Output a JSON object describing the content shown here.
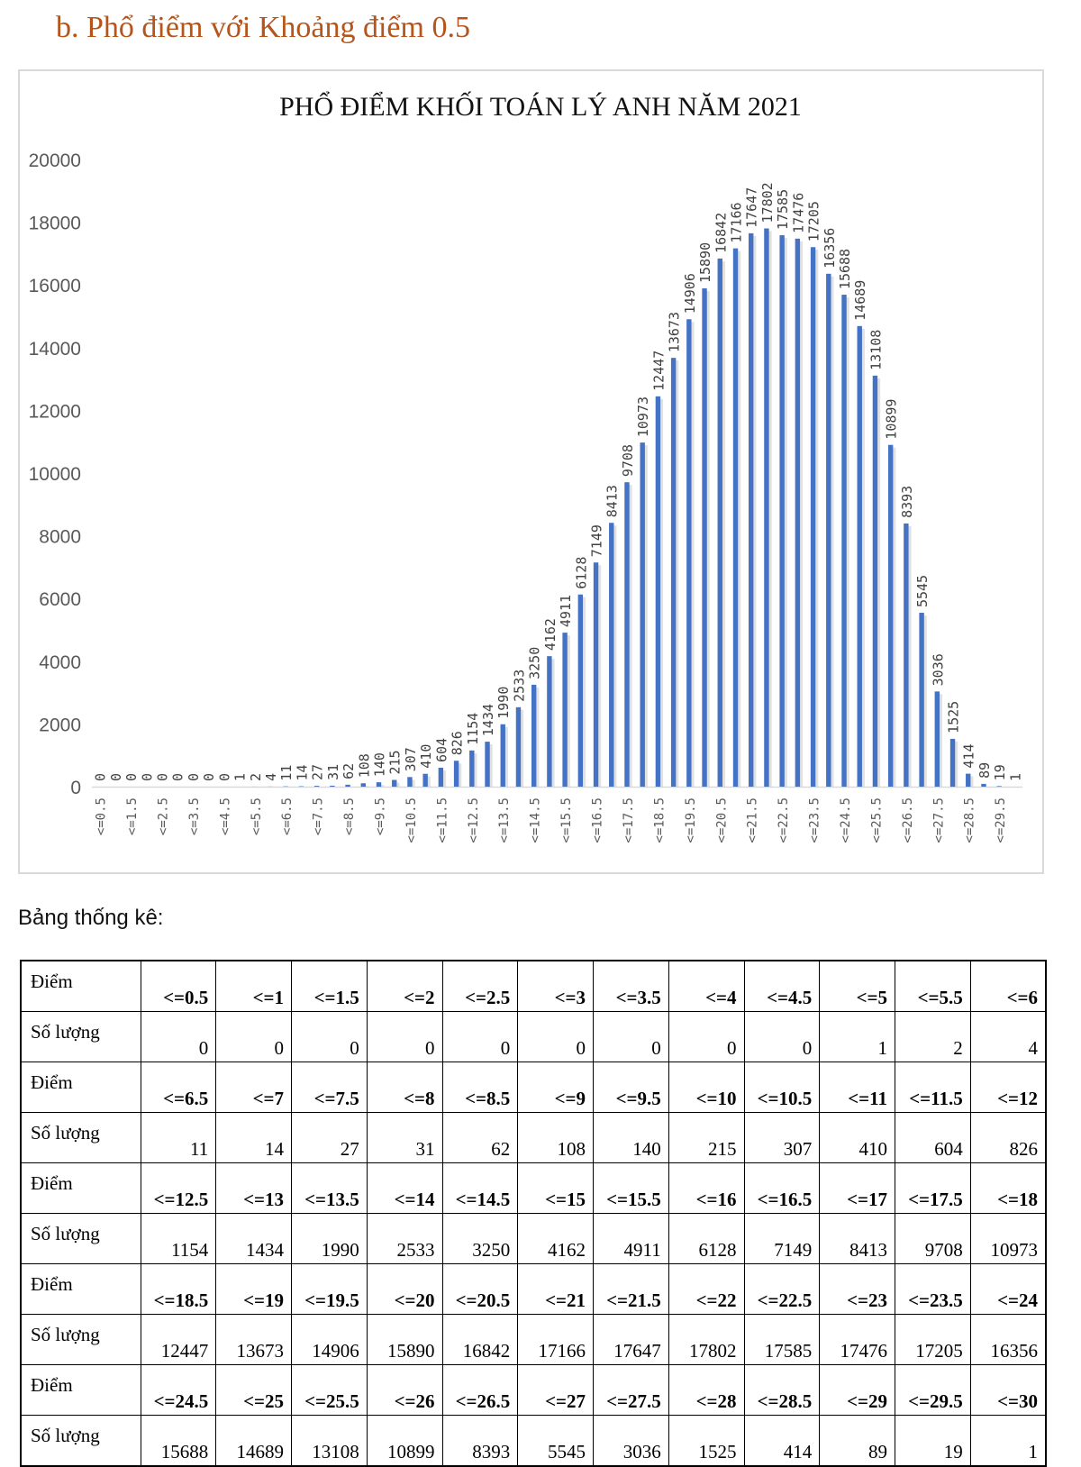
{
  "heading": "b.  Phổ điểm với Khoảng điểm 0.5",
  "subheading": "Bảng thống kê:",
  "table": {
    "score_label": "Điểm",
    "count_label": "Số lượng",
    "rows": [
      {
        "scores": [
          "<=0.5",
          "<=1",
          "<=1.5",
          "<=2",
          "<=2.5",
          "<=3",
          "<=3.5",
          "<=4",
          "<=4.5",
          "<=5",
          "<=5.5",
          "<=6"
        ],
        "counts": [
          "0",
          "0",
          "0",
          "0",
          "0",
          "0",
          "0",
          "0",
          "0",
          "1",
          "2",
          "4"
        ]
      },
      {
        "scores": [
          "<=6.5",
          "<=7",
          "<=7.5",
          "<=8",
          "<=8.5",
          "<=9",
          "<=9.5",
          "<=10",
          "<=10.5",
          "<=11",
          "<=11.5",
          "<=12"
        ],
        "counts": [
          "11",
          "14",
          "27",
          "31",
          "62",
          "108",
          "140",
          "215",
          "307",
          "410",
          "604",
          "826"
        ]
      },
      {
        "scores": [
          "<=12.5",
          "<=13",
          "<=13.5",
          "<=14",
          "<=14.5",
          "<=15",
          "<=15.5",
          "<=16",
          "<=16.5",
          "<=17",
          "<=17.5",
          "<=18"
        ],
        "counts": [
          "1154",
          "1434",
          "1990",
          "2533",
          "3250",
          "4162",
          "4911",
          "6128",
          "7149",
          "8413",
          "9708",
          "10973"
        ]
      },
      {
        "scores": [
          "<=18.5",
          "<=19",
          "<=19.5",
          "<=20",
          "<=20.5",
          "<=21",
          "<=21.5",
          "<=22",
          "<=22.5",
          "<=23",
          "<=23.5",
          "<=24"
        ],
        "counts": [
          "12447",
          "13673",
          "14906",
          "15890",
          "16842",
          "17166",
          "17647",
          "17802",
          "17585",
          "17476",
          "17205",
          "16356"
        ]
      },
      {
        "scores": [
          "<=24.5",
          "<=25",
          "<=25.5",
          "<=26",
          "<=26.5",
          "<=27",
          "<=27.5",
          "<=28",
          "<=28.5",
          "<=29",
          "<=29.5",
          "<=30"
        ],
        "counts": [
          "15688",
          "14689",
          "13108",
          "10899",
          "8393",
          "5545",
          "3036",
          "1525",
          "414",
          "89",
          "19",
          "1"
        ]
      }
    ]
  },
  "chart_data": {
    "type": "bar",
    "title": "PHỔ ĐIỂM KHỐI TOÁN LÝ ANH  NĂM 2021",
    "xlabel": "",
    "ylabel": "",
    "ylim": [
      0,
      20000
    ],
    "yticks": [
      0,
      2000,
      4000,
      6000,
      8000,
      10000,
      12000,
      14000,
      16000,
      18000,
      20000
    ],
    "categories": [
      "<=0.5",
      "<=1",
      "<=1.5",
      "<=2",
      "<=2.5",
      "<=3",
      "<=3.5",
      "<=4",
      "<=4.5",
      "<=5",
      "<=5.5",
      "<=6",
      "<=6.5",
      "<=7",
      "<=7.5",
      "<=8",
      "<=8.5",
      "<=9",
      "<=9.5",
      "<=10",
      "<=10.5",
      "<=11",
      "<=11.5",
      "<=12",
      "<=12.5",
      "<=13",
      "<=13.5",
      "<=14",
      "<=14.5",
      "<=15",
      "<=15.5",
      "<=16",
      "<=16.5",
      "<=17",
      "<=17.5",
      "<=18",
      "<=18.5",
      "<=19",
      "<=19.5",
      "<=20",
      "<=20.5",
      "<=21",
      "<=21.5",
      "<=22",
      "<=22.5",
      "<=23",
      "<=23.5",
      "<=24",
      "<=24.5",
      "<=25",
      "<=25.5",
      "<=26",
      "<=26.5",
      "<=27",
      "<=27.5",
      "<=28",
      "<=28.5",
      "<=29",
      "<=29.5",
      "<=30"
    ],
    "tick_labels": [
      "<=0.5",
      "<=1.5",
      "<=2.5",
      "<=3.5",
      "<=4.5",
      "<=5.5",
      "<=6.5",
      "<=7.5",
      "<=8.5",
      "<=9.5",
      "<=10.5",
      "<=11.5",
      "<=12.5",
      "<=13.5",
      "<=14.5",
      "<=15.5",
      "<=16.5",
      "<=17.5",
      "<=18.5",
      "<=19.5",
      "<=20.5",
      "<=21.5",
      "<=22.5",
      "<=23.5",
      "<=24.5",
      "<=25.5",
      "<=26.5",
      "<=27.5",
      "<=28.5",
      "<=29.5"
    ],
    "values": [
      0,
      0,
      0,
      0,
      0,
      0,
      0,
      0,
      0,
      1,
      2,
      4,
      11,
      14,
      27,
      31,
      62,
      108,
      140,
      215,
      307,
      410,
      604,
      826,
      1154,
      1434,
      1990,
      2533,
      3250,
      4162,
      4911,
      6128,
      7149,
      8413,
      9708,
      10973,
      12447,
      13673,
      14906,
      15890,
      16842,
      17166,
      17647,
      17802,
      17585,
      17476,
      17205,
      16356,
      15688,
      14689,
      13108,
      10899,
      8393,
      5545,
      3036,
      1525,
      414,
      89,
      19,
      1
    ],
    "bar_color": "#4472c4",
    "grid": false,
    "legend": "none"
  }
}
